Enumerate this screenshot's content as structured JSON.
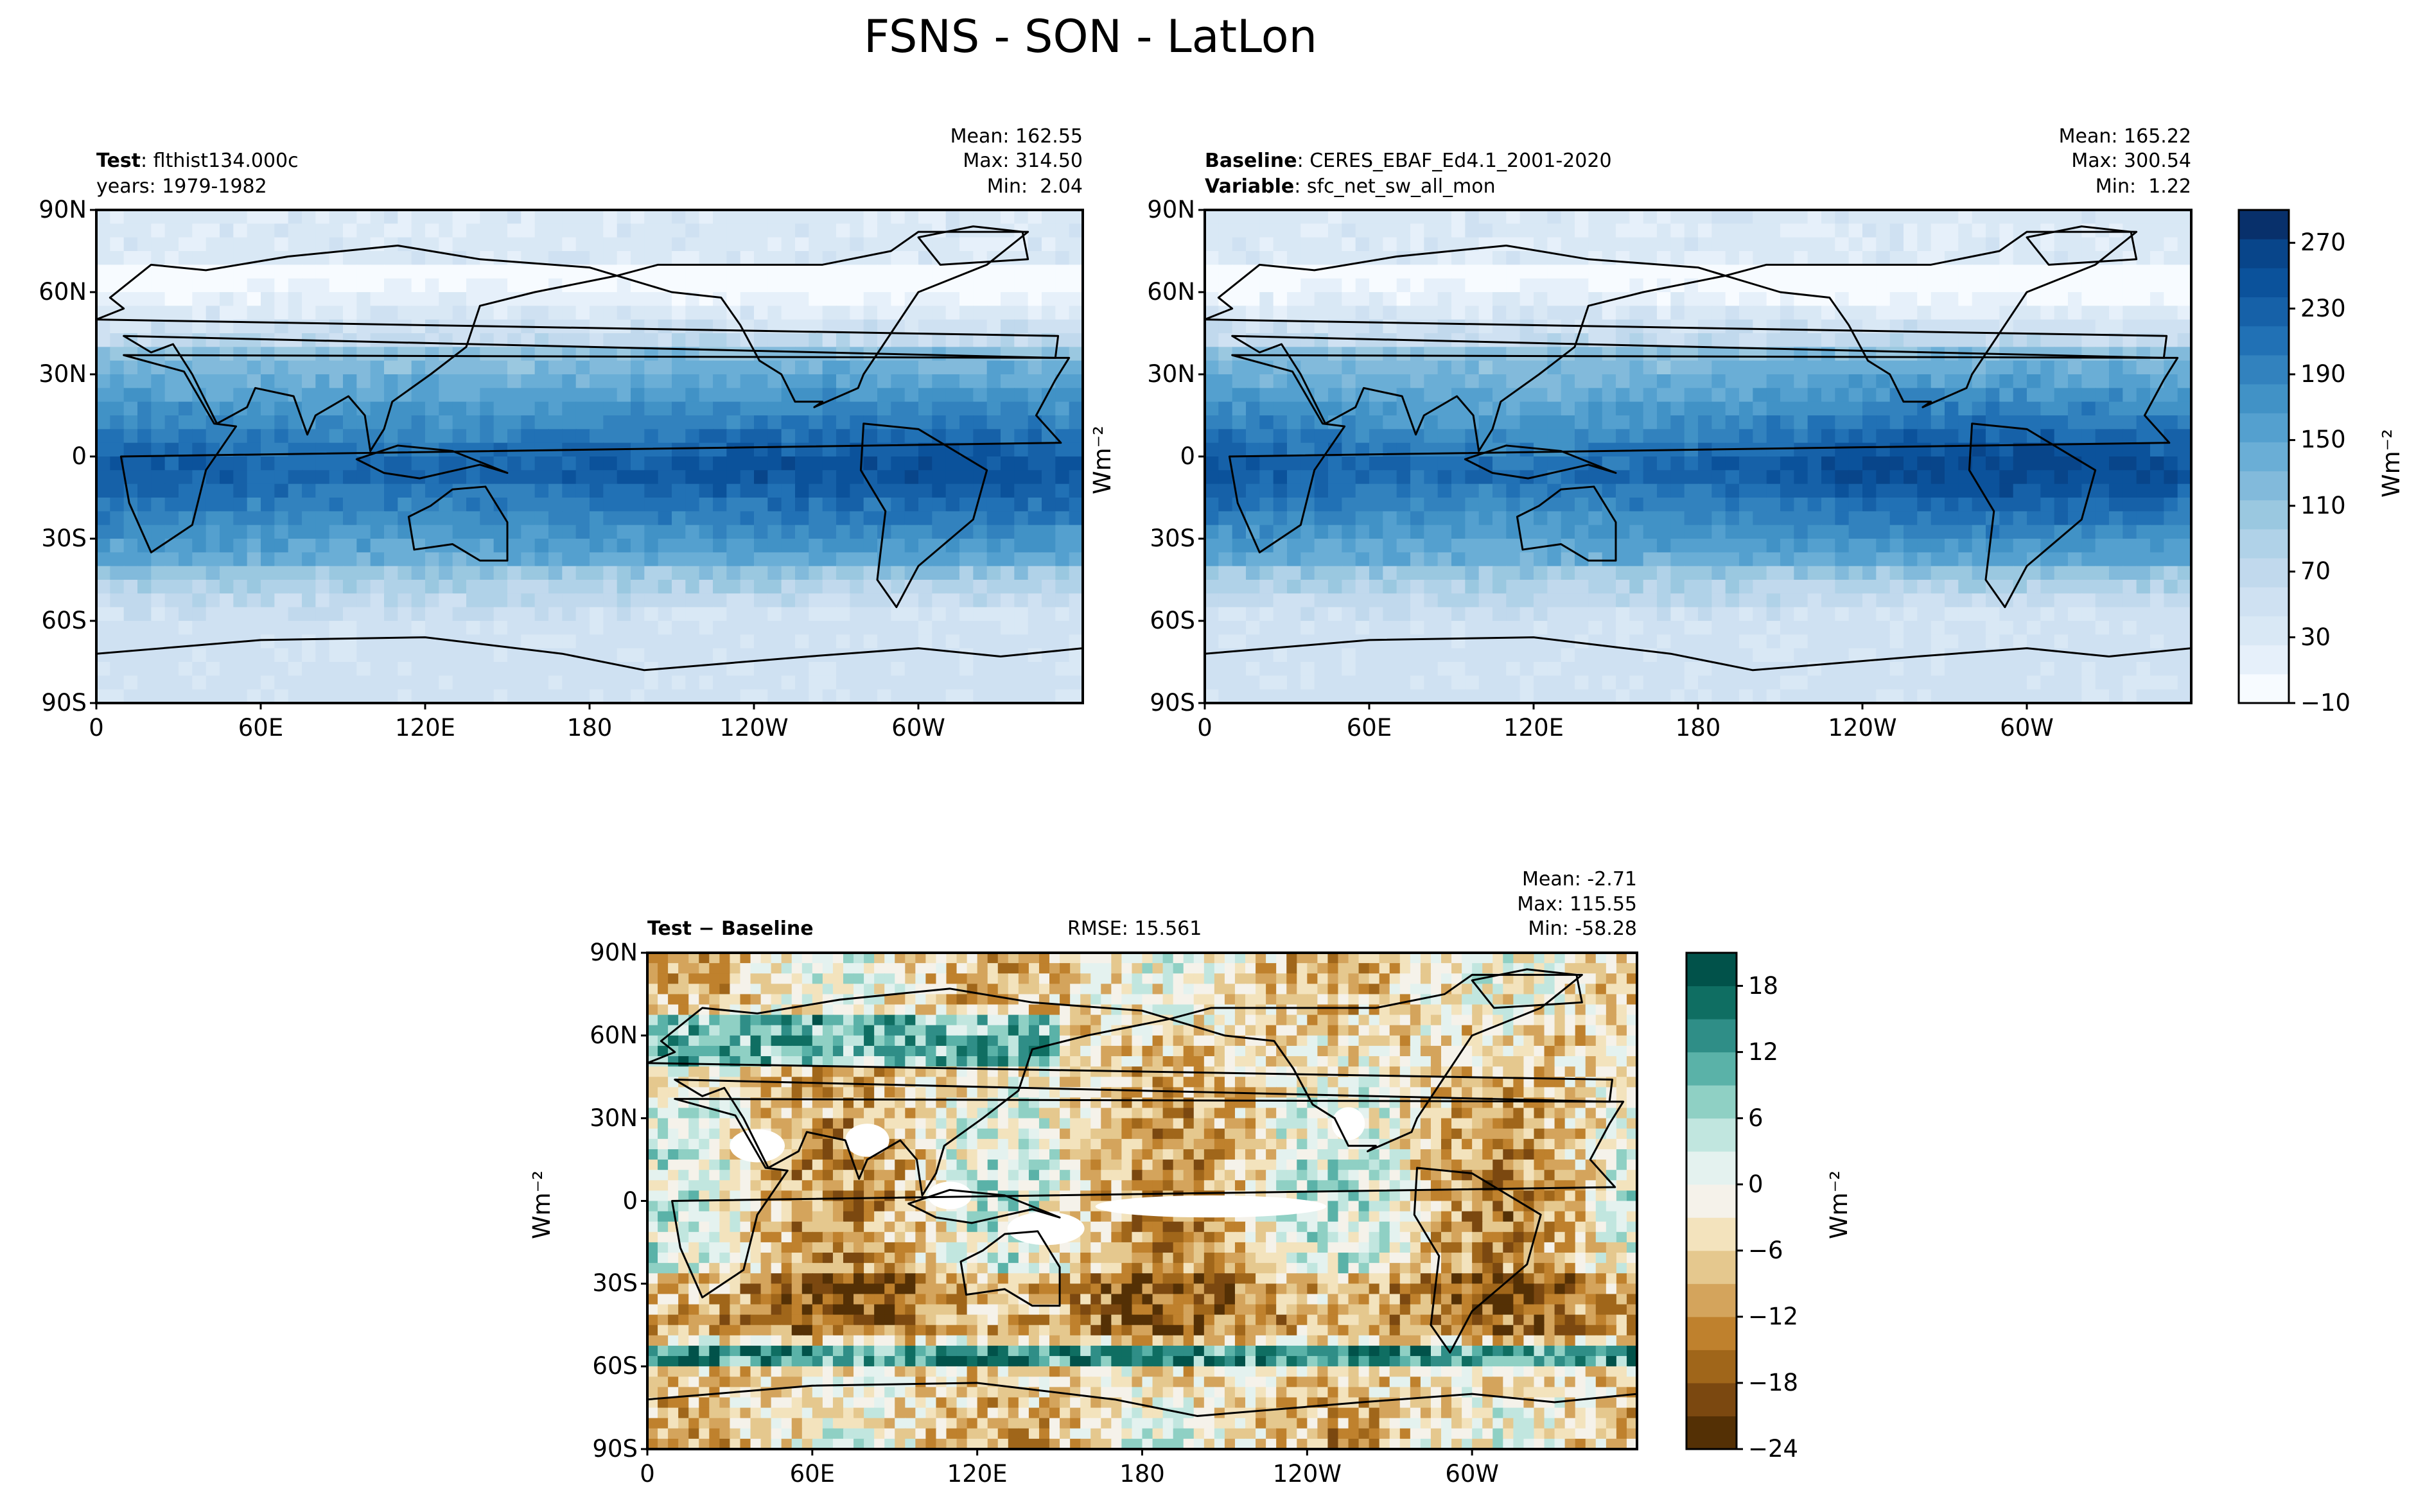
{
  "figure": {
    "title": "FSNS - SON - LatLon"
  },
  "panels": {
    "test": {
      "label_bold": "Test",
      "label_value": ": flthist134.000c",
      "line2": "years: 1979-1982",
      "mean": "Mean: 162.55",
      "max": "Max: 314.50",
      "min": "Min:  2.04"
    },
    "baseline": {
      "label_bold": "Baseline",
      "label_value": ": CERES_EBAF_Ed4.1_2001-2020",
      "line2_bold": "Variable",
      "line2_value": ": sfc_net_sw_all_mon",
      "mean": "Mean: 165.22",
      "max": "Max: 300.54",
      "min": "Min:  1.22"
    },
    "diff": {
      "label": "Test − Baseline",
      "rmse": "RMSE: 15.561",
      "mean": "Mean: -2.71",
      "max": "Max: 115.55",
      "min": "Min: -58.28"
    }
  },
  "units": "Wm⁻²",
  "axes": {
    "lat_ticks": [
      "90N",
      "60N",
      "30N",
      "0",
      "30S",
      "60S",
      "90S"
    ],
    "lon_ticks": [
      "0",
      "60E",
      "120E",
      "180",
      "120W",
      "60W"
    ]
  },
  "chart_data": [
    {
      "type": "heatmap",
      "name": "test",
      "projection": "cylindrical lat-lon",
      "x_range": [
        0,
        360
      ],
      "y_range": [
        -90,
        90
      ],
      "colormap": "Blues",
      "color_range": [
        -10,
        290
      ],
      "stats": {
        "mean": 162.55,
        "max": 314.5,
        "min": 2.04
      }
    },
    {
      "type": "heatmap",
      "name": "baseline",
      "projection": "cylindrical lat-lon",
      "x_range": [
        0,
        360
      ],
      "y_range": [
        -90,
        90
      ],
      "colormap": "Blues",
      "color_range": [
        -10,
        290
      ],
      "stats": {
        "mean": 165.22,
        "max": 300.54,
        "min": 1.22
      }
    },
    {
      "type": "heatmap",
      "name": "difference",
      "projection": "cylindrical lat-lon",
      "x_range": [
        0,
        360
      ],
      "y_range": [
        -90,
        90
      ],
      "colormap": "BrBG",
      "color_range": [
        -24,
        21
      ],
      "stats": {
        "mean": -2.71,
        "max": 115.55,
        "min": -58.28,
        "rmse": 15.561
      }
    }
  ],
  "colorbars": {
    "main": {
      "tick_labels": [
        "270",
        "230",
        "190",
        "150",
        "110",
        "70",
        "30",
        "−10"
      ],
      "tick_values": [
        270,
        230,
        190,
        150,
        110,
        70,
        30,
        -10
      ],
      "range": [
        -10,
        290
      ],
      "colors": [
        "#f7fbff",
        "#e6f0fa",
        "#d9e8f5",
        "#cfe1f2",
        "#c1d9ed",
        "#b0d2e8",
        "#9ac8e0",
        "#82badb",
        "#6aaed6",
        "#54a0cf",
        "#4192c6",
        "#3282be",
        "#2171b5",
        "#1661a8",
        "#0b529b",
        "#08458a",
        "#08306b"
      ]
    },
    "diff": {
      "tick_labels": [
        "18",
        "12",
        "6",
        "0",
        "−6",
        "−12",
        "−18",
        "−24"
      ],
      "tick_values": [
        18,
        12,
        6,
        0,
        -6,
        -12,
        -18,
        -24
      ],
      "range": [
        -24,
        21
      ],
      "colors": [
        "#543005",
        "#7b4810",
        "#a0661a",
        "#bf812d",
        "#d4a45c",
        "#e5c88e",
        "#f3e3bd",
        "#f5f2ea",
        "#e4f2ef",
        "#c1e6df",
        "#8fd0c4",
        "#5ab2a8",
        "#2f8e87",
        "#0f6e62",
        "#01524a"
      ]
    }
  }
}
